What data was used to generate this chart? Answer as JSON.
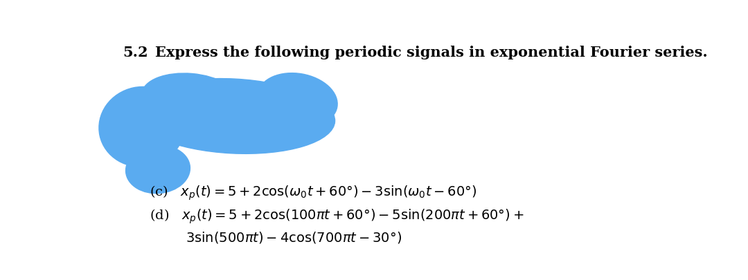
{
  "background_color": "#ffffff",
  "header_number": "5.2",
  "header_text": "Express the following periodic signals in exponential Fourier series.",
  "line_c_label": "(c)   $x_p(t) = 5 + 2\\mathrm{cos}(\\omega_0 t + 60°) - 3\\mathrm{sin}(\\omega_0 t - 60°)$",
  "line_d_label": "(d)   $x_p(t) = 5 + 2\\mathrm{cos}(100\\pi t + 60°) - 5\\mathrm{sin}(200\\pi t + 60°) +$",
  "line_d_cont": "$3\\mathrm{sin}(500\\pi t) - 4\\mathrm{cos}(700\\pi t - 30°)$",
  "blob_color": "#5aabf0",
  "font_size_header": 15,
  "font_size_body": 14
}
